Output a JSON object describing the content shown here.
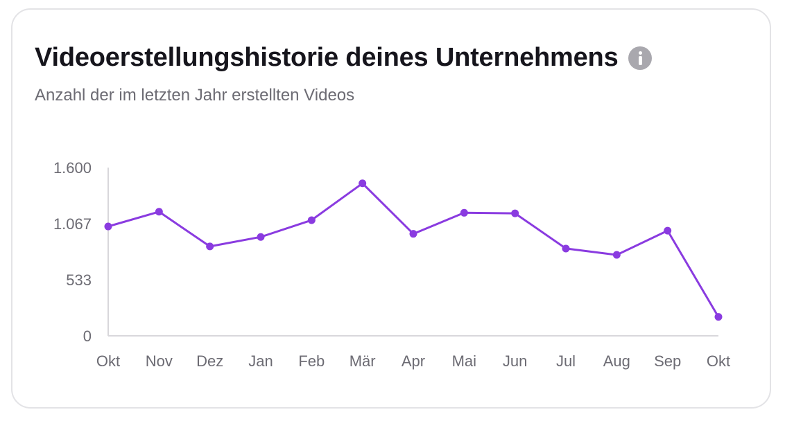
{
  "card": {
    "title": "Videoerstellungshistorie deines Unternehmens",
    "subtitle": "Anzahl der im letzten Jahr erstellten Videos",
    "info_icon": "info-icon"
  },
  "chart_data": {
    "type": "line",
    "categories": [
      "Okt",
      "Nov",
      "Dez",
      "Jan",
      "Feb",
      "Mär",
      "Apr",
      "Mai",
      "Jun",
      "Jul",
      "Aug",
      "Sep",
      "Okt"
    ],
    "series": [
      {
        "values": [
          1040,
          1180,
          850,
          940,
          1100,
          1450,
          970,
          1170,
          1165,
          830,
          770,
          1000,
          180
        ],
        "color": "#8a3be0"
      }
    ],
    "y_ticks": [
      {
        "value": 0,
        "label": "0"
      },
      {
        "value": 533,
        "label": "533"
      },
      {
        "value": 1067,
        "label": "1.067"
      },
      {
        "value": 1600,
        "label": "1.600"
      }
    ],
    "ylim": [
      0,
      1600
    ],
    "grid": false,
    "axis_color": "#d8d7db",
    "xlabel": "",
    "ylabel": ""
  }
}
